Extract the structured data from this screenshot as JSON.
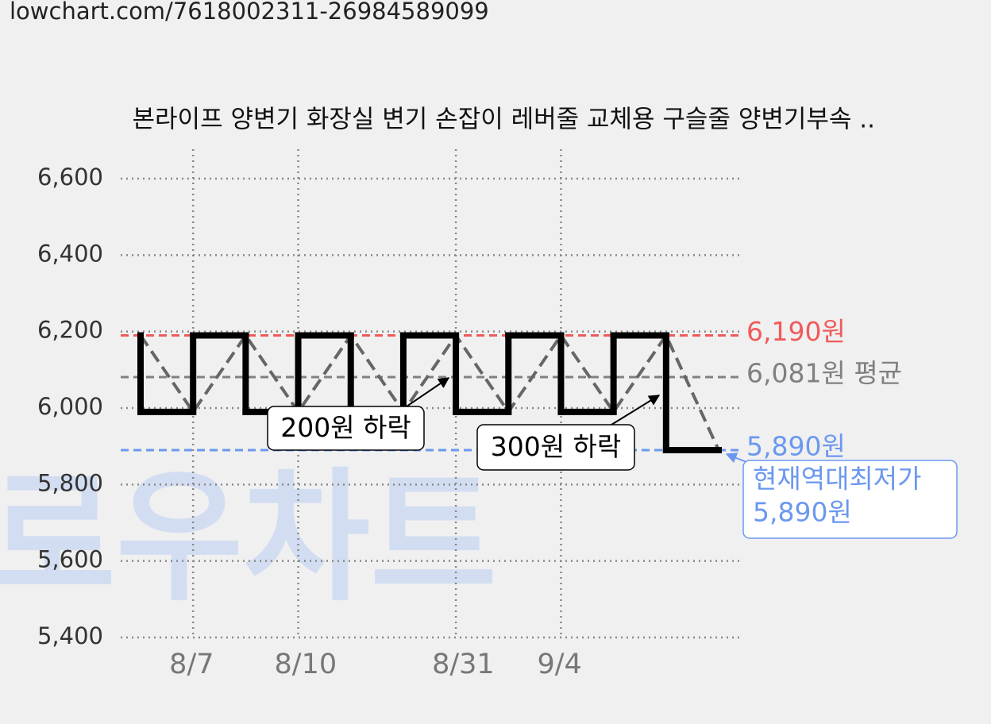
{
  "url": "lowchart.com/7618002311-26984589099",
  "chart_data": {
    "type": "step",
    "title": "본라이프 양변기 화장실 변기 손잡이 레버줄 교체용 구슬줄 양변기부속 ..",
    "watermark": "로우차트",
    "categories": [
      null,
      "8/7",
      null,
      "8/10",
      null,
      null,
      "8/31",
      null,
      "9/4",
      null,
      null,
      null
    ],
    "series": [
      {
        "color": "#000000",
        "values": [
          6190,
          5990,
          6190,
          5990,
          6190,
          5990,
          6190,
          5990,
          6190,
          5990,
          6190,
          5890
        ]
      }
    ],
    "ylim": [
      5400,
      6600
    ],
    "yticks": [
      {
        "value": 5400,
        "label": "5,400"
      },
      {
        "value": 5600,
        "label": "5,600"
      },
      {
        "value": 5800,
        "label": "5,800"
      },
      {
        "value": 6000,
        "label": "6,000"
      },
      {
        "value": 6200,
        "label": "6,200"
      },
      {
        "value": 6400,
        "label": "6,400"
      },
      {
        "value": 6600,
        "label": "6,600"
      }
    ],
    "grid": true,
    "reference_lines": [
      {
        "value": 6190,
        "label": "6,190원",
        "color": "#f05a5a"
      },
      {
        "value": 6081,
        "label": "6,081원 평균",
        "color": "#808080"
      },
      {
        "value": 5890,
        "label": "5,890원",
        "color": "#6b98ef"
      }
    ],
    "annotations": [
      {
        "text": "200원 하락"
      },
      {
        "text": "300원 하락"
      }
    ],
    "callout": {
      "lines": [
        "현재역대최저가",
        "5,890원"
      ],
      "color": "#6b98ef"
    }
  }
}
